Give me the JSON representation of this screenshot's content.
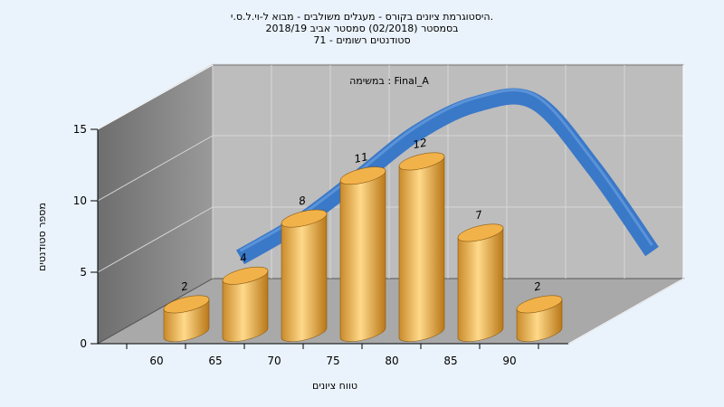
{
  "chart_data": {
    "type": "bar",
    "title_lines": [
      "היסטוגרמת ציונים בקורס - מעגלים משולבים - מבוא ל-וי.ל.ס.י.",
      "בסמסטר (02/2018) סמסטר אביב 2018/19",
      "סטודנטים רשומים - 71"
    ],
    "annotation": "במשימה : Final_A",
    "xlabel": "טווח ציונים",
    "ylabel": "מספר סטודנטים",
    "categories": [
      "60",
      "65",
      "70",
      "75",
      "80",
      "85",
      "90"
    ],
    "values": [
      2,
      4,
      8,
      11,
      12,
      7,
      2
    ],
    "ylim": [
      0,
      15
    ],
    "yticks": [
      "0",
      "5",
      "10",
      "15"
    ],
    "series": [
      {
        "type": "bar",
        "values": [
          2,
          4,
          8,
          11,
          12,
          7,
          2
        ]
      },
      {
        "type": "line",
        "x": [
          62.5,
          67.5,
          72.5,
          77.5,
          82.5,
          87.5,
          92.5,
          97.5
        ],
        "values": [
          3.9,
          6.3,
          9.4,
          12.6,
          14.6,
          14.8,
          10.2,
          4.3
        ]
      }
    ],
    "colors": {
      "bar": "#e8a540",
      "line": "#3672c4",
      "wall": "#bdbdbd",
      "side_wall": "#8a8a8a",
      "floor": "#a9a9a9"
    },
    "grid": true
  }
}
